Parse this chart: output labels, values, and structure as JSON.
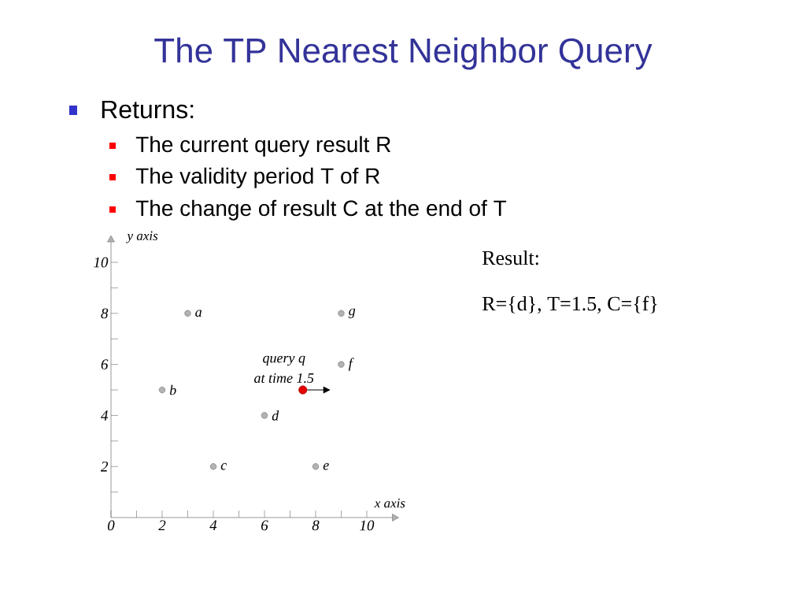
{
  "chart_data": {
    "type": "scatter",
    "title": "The TP Nearest Neighbor Query",
    "xlabel": "x axis",
    "ylabel": "y axis",
    "series": [
      {
        "x": [
          3,
          2,
          4,
          6,
          8,
          9,
          9
        ],
        "values": [
          8,
          5,
          2,
          4,
          2,
          6,
          8
        ],
        "color": "#b3b3b3"
      },
      {
        "x": [
          7.5
        ],
        "values": [
          5
        ],
        "color": "#e60000"
      }
    ],
    "marker": "circle",
    "xlim": [
      0,
      11
    ],
    "ylim": [
      0,
      10.8
    ],
    "xticks": [
      0,
      {
        "value": 1,
        "label": null
      },
      2,
      {
        "value": 3,
        "label": null
      },
      4,
      {
        "value": 5,
        "label": null
      },
      6,
      {
        "value": 7,
        "label": null
      },
      8,
      {
        "value": 9,
        "label": null
      },
      10
    ],
    "yticks": [
      {
        "value": 1,
        "label": null
      },
      2,
      {
        "value": 3,
        "label": null
      },
      4,
      {
        "value": 5,
        "label": null
      },
      6,
      {
        "value": 7,
        "label": null
      },
      8,
      {
        "value": 9,
        "label": null
      },
      10
    ],
    "annotations": [
      "Returns:",
      "The current query result R",
      "The validity period T of R",
      "The change of result C at the end of T",
      "Result:",
      "R={d}, T=1.5, C={f}",
      {
        "text": "a",
        "x": 3,
        "y": 8
      },
      {
        "text": "b",
        "x": 2,
        "y": 5
      },
      {
        "text": "c",
        "x": 4,
        "y": 2
      },
      {
        "text": "d",
        "x": 6,
        "y": 4
      },
      {
        "text": "e",
        "x": 8,
        "y": 2
      },
      {
        "text": "f",
        "x": 9,
        "y": 6
      },
      {
        "text": "g",
        "x": 9,
        "y": 8
      },
      {
        "text": "query q",
        "x": 7.5,
        "y": 5
      },
      {
        "text": "at time 1.5",
        "x": 7.5,
        "y": 5
      }
    ]
  }
}
